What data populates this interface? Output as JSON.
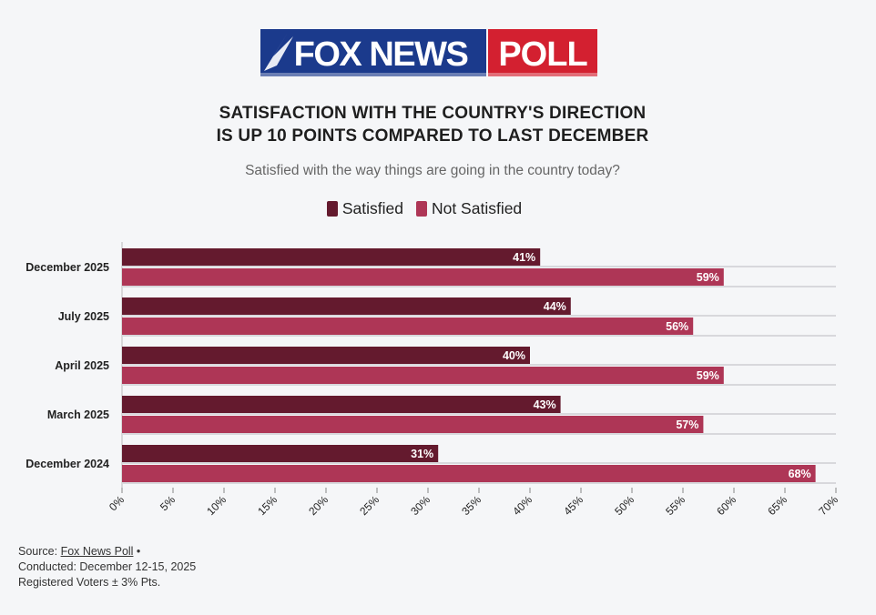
{
  "logo": {
    "brand": "FOX NEWS",
    "product": "POLL",
    "colors": {
      "blue": "#1b3a8c",
      "red": "#d32030"
    }
  },
  "source": {
    "prefix": "Source: ",
    "link_text": "Fox News Poll",
    "bullet": " •",
    "conducted": "Conducted: December 12-15, 2025",
    "population": "Registered Voters ± 3% Pts."
  },
  "chart_data": {
    "type": "bar",
    "orientation": "horizontal",
    "title_lines": [
      "SATISFACTION WITH THE COUNTRY'S DIRECTION",
      "IS UP 10 POINTS COMPARED TO LAST DECEMBER"
    ],
    "subtitle": "Satisfied with the way things are going in the country today?",
    "categories": [
      "December 2025",
      "July 2025",
      "April 2025",
      "March 2025",
      "December 2024"
    ],
    "series": [
      {
        "name": "Satisfied",
        "color": "#641a2e",
        "values": [
          41,
          44,
          40,
          43,
          31
        ]
      },
      {
        "name": "Not Satisfied",
        "color": "#ae3656",
        "values": [
          59,
          56,
          59,
          57,
          68
        ]
      }
    ],
    "value_suffix": "%",
    "xlim": [
      0,
      70
    ],
    "xticks": [
      0,
      5,
      10,
      15,
      20,
      25,
      30,
      35,
      40,
      45,
      50,
      55,
      60,
      65,
      70
    ],
    "tick_suffix": "%",
    "legend_position": "top-center"
  }
}
